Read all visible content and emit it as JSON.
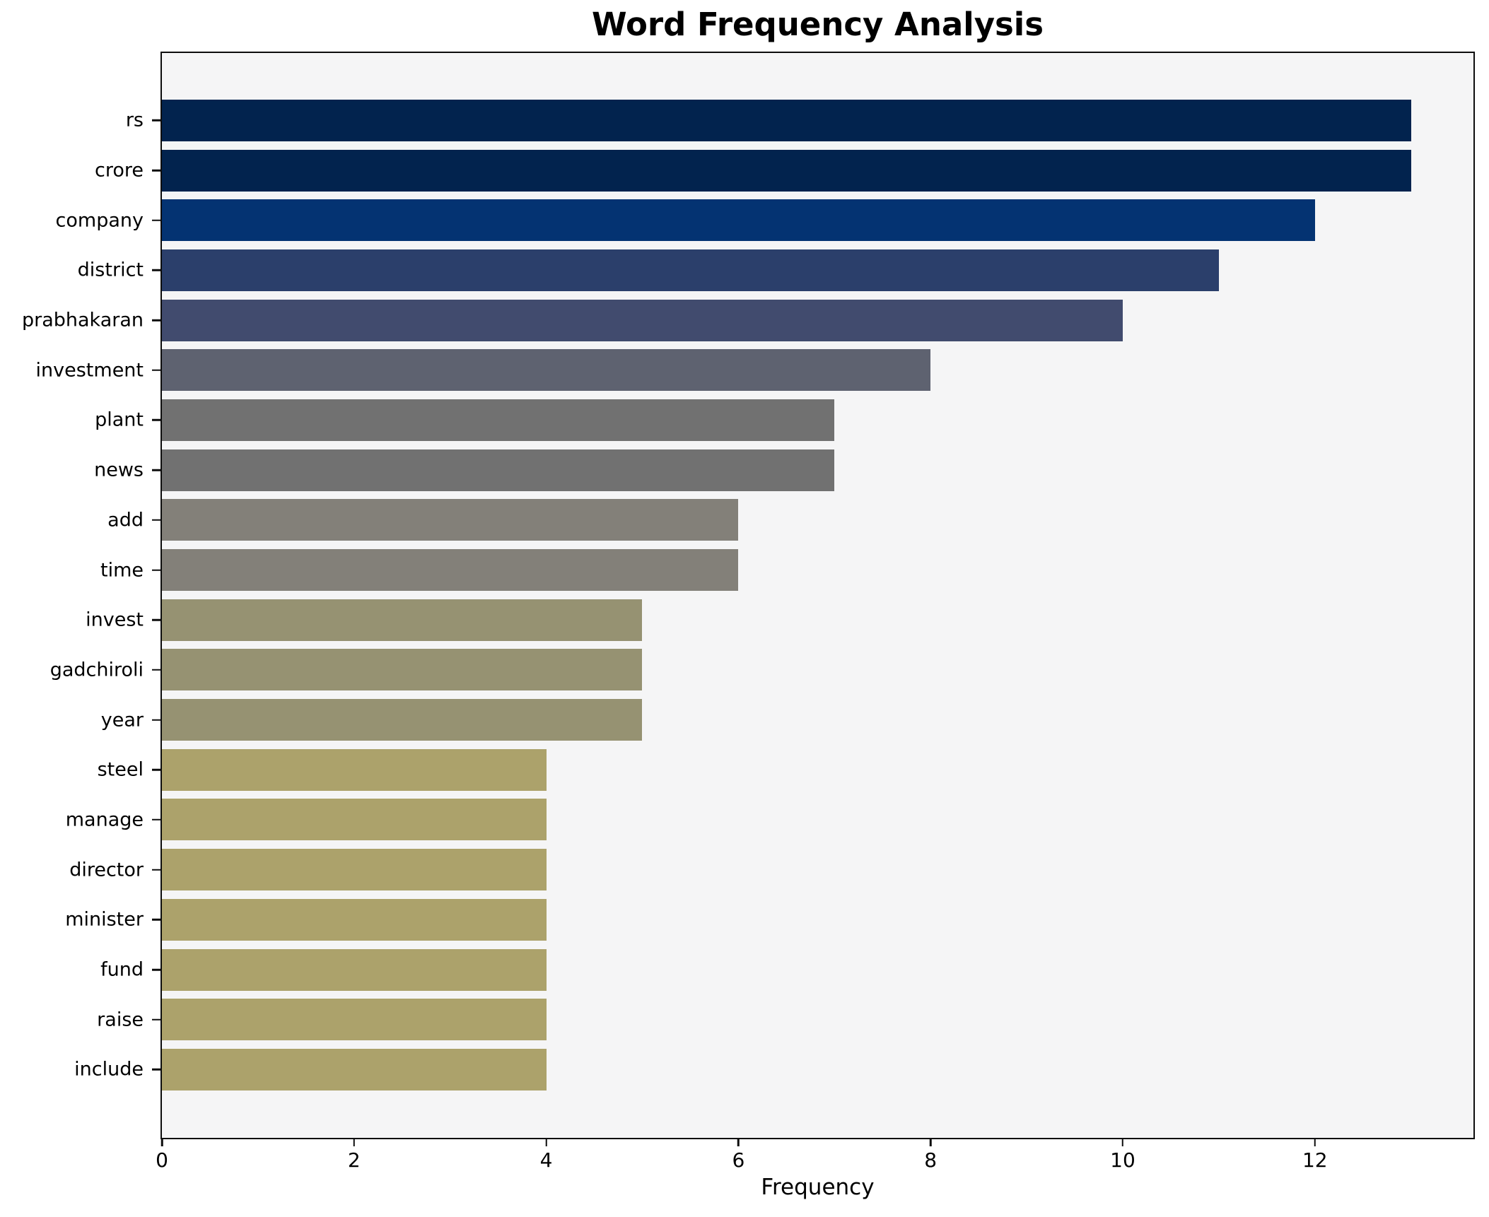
{
  "chart_data": {
    "type": "bar",
    "orientation": "horizontal",
    "title": "Word Frequency Analysis",
    "xlabel": "Frequency",
    "ylabel": "",
    "categories": [
      "rs",
      "crore",
      "company",
      "district",
      "prabhakaran",
      "investment",
      "plant",
      "news",
      "add",
      "time",
      "invest",
      "gadchiroli",
      "year",
      "steel",
      "manage",
      "director",
      "minister",
      "fund",
      "raise",
      "include"
    ],
    "values": [
      13,
      13,
      12,
      11,
      10,
      8,
      7,
      7,
      6,
      6,
      5,
      5,
      5,
      4,
      4,
      4,
      4,
      4,
      4,
      4
    ],
    "bar_colors": [
      "#02234e",
      "#02234e",
      "#043372",
      "#2b3f6b",
      "#414b6e",
      "#5e6270",
      "#717171",
      "#717171",
      "#838079",
      "#838079",
      "#969272",
      "#969272",
      "#969272",
      "#aca26b",
      "#aca26b",
      "#aca26b",
      "#aca26b",
      "#aca26b",
      "#aca26b",
      "#aca26b"
    ],
    "xlim": [
      0,
      13.65
    ],
    "xticks": [
      0,
      2,
      4,
      6,
      8,
      10,
      12
    ],
    "grid": false,
    "legend": "none",
    "plot_background": "#f5f5f6",
    "figure_background": "#ffffff",
    "spine_color": "#0d0d0d"
  }
}
